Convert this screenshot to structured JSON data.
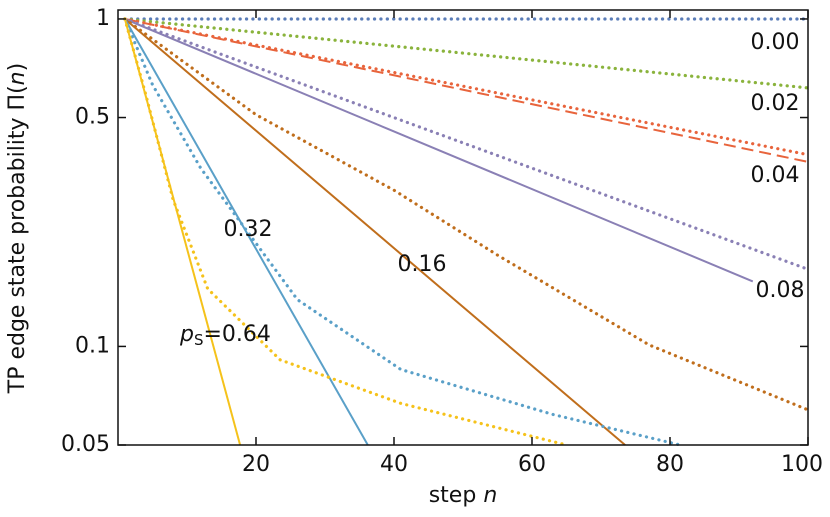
{
  "chart_data": {
    "type": "line",
    "y_label": [
      "TP edge state probability Π(",
      "n",
      ")"
    ],
    "x_label": [
      "step ",
      "n"
    ],
    "xlim": [
      0,
      100
    ],
    "xticks": [
      20,
      40,
      60,
      80,
      100
    ],
    "ylim": [
      0.05,
      1.065
    ],
    "yticks": [
      0.05,
      0.1,
      0.5,
      1
    ],
    "log_y": true,
    "annotations": [
      "0.00",
      "0.02",
      "0.04",
      "0.08",
      "0.16",
      "0.32"
    ],
    "ps_annotation": [
      "p",
      "S",
      "=0.64"
    ],
    "series": [
      {
        "color": "#5b7db8",
        "style": "dotted",
        "x": [
          1,
          100
        ],
        "values": [
          1,
          1
        ]
      },
      {
        "color": "#8ab33c",
        "style": "dotted",
        "x": [
          1,
          100
        ],
        "values": [
          1,
          0.616
        ]
      },
      {
        "color": "#e8643c",
        "style": "dashed",
        "x": [
          1,
          100
        ],
        "values": [
          1,
          0.366
        ]
      },
      {
        "color": "#e8643c",
        "style": "dotted",
        "x": [
          1,
          100
        ],
        "values": [
          1,
          0.385
        ]
      },
      {
        "color": "#8a80b5",
        "style": "solid",
        "x": [
          1,
          92
        ],
        "values": [
          1,
          0.158
        ]
      },
      {
        "color": "#8a80b5",
        "style": "dotted",
        "x": [
          1,
          100
        ],
        "values": [
          1,
          0.172
        ]
      },
      {
        "color": "#c06e1c",
        "style": "solid",
        "x": [
          1,
          73.5
        ],
        "values": [
          1,
          0.05
        ]
      },
      {
        "color": "#c06e1c",
        "style": "dotted",
        "x": [
          1,
          20,
          40,
          55,
          77,
          100
        ],
        "values": [
          1,
          0.51,
          0.3,
          0.19,
          0.101,
          0.064
        ]
      },
      {
        "color": "#5aa0c8",
        "style": "solid",
        "x": [
          1,
          36.2
        ],
        "values": [
          1,
          0.05
        ]
      },
      {
        "color": "#5aa0c8",
        "style": "dotted",
        "x": [
          1,
          5,
          12,
          26,
          41,
          63,
          81.5
        ],
        "values": [
          1,
          0.63,
          0.35,
          0.139,
          0.085,
          0.062,
          0.05
        ]
      },
      {
        "color": "#f5c21b",
        "style": "solid",
        "x": [
          1,
          17.7
        ],
        "values": [
          1,
          0.05
        ]
      },
      {
        "color": "#f5c21b",
        "style": "dotted",
        "x": [
          1,
          4,
          8,
          13,
          23.5,
          41,
          65
        ],
        "values": [
          1,
          0.59,
          0.28,
          0.15,
          0.091,
          0.067,
          0.05
        ]
      }
    ]
  }
}
